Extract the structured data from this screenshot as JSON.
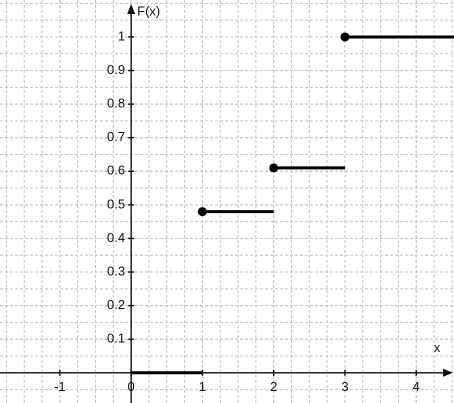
{
  "chart_data": {
    "type": "step",
    "ylabel": "F(x)",
    "xlabel": "x",
    "x": [
      0,
      1,
      2,
      3
    ],
    "values": [
      0,
      0.48,
      0.61,
      1
    ],
    "color": "#000000",
    "xlim": [
      -1.84,
      4.53
    ],
    "ylim": [
      -0.09,
      1.11
    ],
    "xticks": [
      -1,
      0,
      1,
      2,
      3,
      4
    ],
    "yticks": [
      0.1,
      0.2,
      0.3,
      0.4,
      0.5,
      0.6,
      0.7,
      0.8,
      0.9,
      1
    ],
    "grid": true
  }
}
